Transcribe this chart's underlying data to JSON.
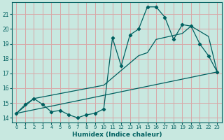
{
  "xlabel": "Humidex (Indice chaleur)",
  "bg_color": "#c8e8e0",
  "grid_color": "#d8a8a8",
  "line_color": "#006060",
  "xlim": [
    -0.5,
    23.5
  ],
  "ylim": [
    13.7,
    21.8
  ],
  "xticks": [
    0,
    1,
    2,
    3,
    4,
    5,
    6,
    7,
    8,
    9,
    10,
    11,
    12,
    13,
    14,
    15,
    16,
    17,
    18,
    19,
    20,
    21,
    22,
    23
  ],
  "yticks": [
    14,
    15,
    16,
    17,
    18,
    19,
    20,
    21
  ],
  "line1_x": [
    0,
    1,
    2,
    3,
    4,
    5,
    6,
    7,
    8,
    9,
    10,
    11,
    12,
    13,
    14,
    15,
    16,
    17,
    18,
    19,
    20,
    21,
    22,
    23
  ],
  "line1_y": [
    14.3,
    14.9,
    15.3,
    14.9,
    14.4,
    14.5,
    14.2,
    14.0,
    14.2,
    14.3,
    14.6,
    19.4,
    17.5,
    19.6,
    20.0,
    21.5,
    21.5,
    20.8,
    19.3,
    20.3,
    20.2,
    19.0,
    18.2,
    17.1
  ],
  "line2_x": [
    0,
    2,
    10,
    14,
    15,
    16,
    19,
    20,
    22,
    23
  ],
  "line2_y": [
    14.3,
    15.3,
    16.2,
    18.2,
    18.4,
    19.3,
    19.7,
    20.2,
    19.5,
    17.1
  ],
  "line3_x": [
    0,
    23
  ],
  "line3_y": [
    14.3,
    17.1
  ]
}
